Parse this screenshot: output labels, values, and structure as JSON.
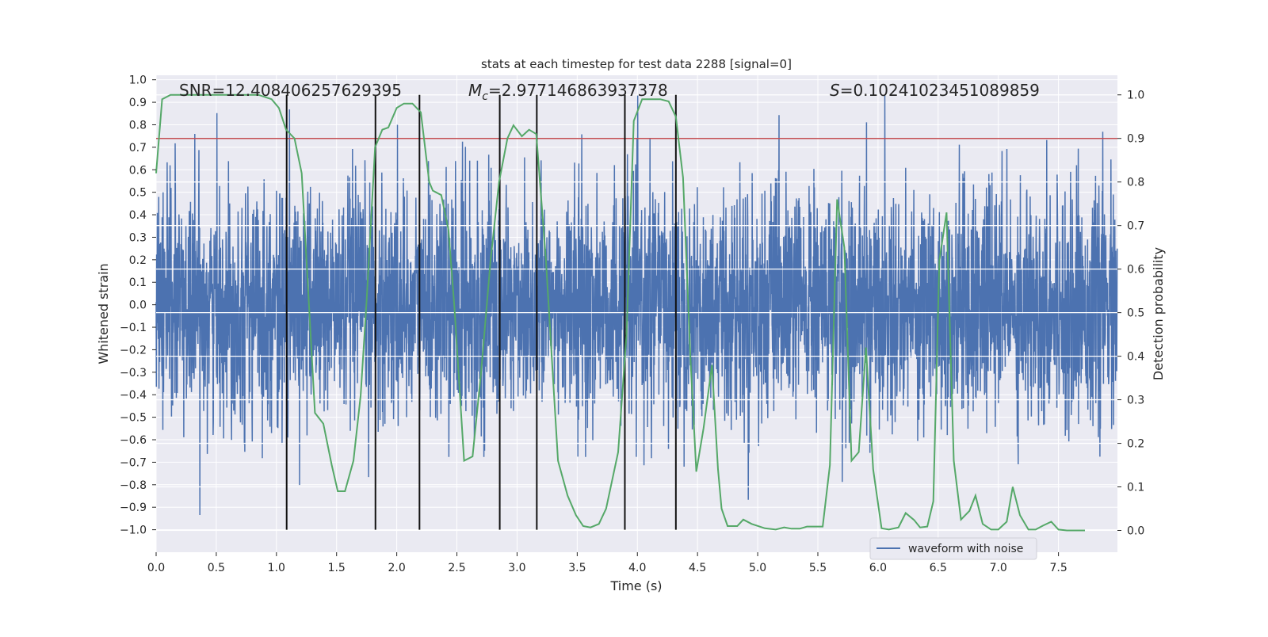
{
  "chart_data": {
    "type": "line",
    "title": "stats at each timestep for test data 2288 [signal=0]",
    "xlabel": "Time (s)",
    "ylabel": "Whitened strain",
    "ylabel_right": "Detection probability",
    "xlim": [
      0,
      7.99
    ],
    "ylim": [
      -1.1,
      1.02
    ],
    "ylim_right": [
      -0.05,
      1.045
    ],
    "x_ticks": [
      0.0,
      0.5,
      1.0,
      1.5,
      2.0,
      2.5,
      3.0,
      3.5,
      4.0,
      4.5,
      5.0,
      5.5,
      6.0,
      6.5,
      7.0,
      7.5
    ],
    "x_tick_labels": [
      "0.0",
      "0.5",
      "1.0",
      "1.5",
      "2.0",
      "2.5",
      "3.0",
      "3.5",
      "4.0",
      "4.5",
      "5.0",
      "5.5",
      "6.0",
      "6.5",
      "7.0",
      "7.5"
    ],
    "y_ticks": [
      1.0,
      0.9,
      0.8,
      0.7,
      0.6,
      0.5,
      0.4,
      0.3,
      0.2,
      0.1,
      0.0,
      -0.1,
      -0.2,
      -0.3,
      -0.4,
      -0.5,
      -0.6,
      -0.7,
      -0.8,
      -0.9,
      -1.0
    ],
    "y_tick_labels": [
      "1.0",
      "0.9",
      "0.8",
      "0.7",
      "0.6",
      "0.5",
      "0.4",
      "0.3",
      "0.2",
      "0.1",
      "0.0",
      "−0.1",
      "−0.2",
      "−0.3",
      "−0.4",
      "−0.5",
      "−0.6",
      "−0.7",
      "−0.8",
      "−0.9",
      "−1.0"
    ],
    "y_right_ticks": [
      1.0,
      0.9,
      0.8,
      0.7,
      0.6,
      0.5,
      0.4,
      0.3,
      0.2,
      0.1,
      0.0
    ],
    "y_right_tick_labels": [
      "1.0",
      "0.9",
      "0.8",
      "0.7",
      "0.6",
      "0.5",
      "0.4",
      "0.3",
      "0.2",
      "0.1",
      "0.0"
    ],
    "grid": true,
    "legend": {
      "placement": "lower-right",
      "entries": [
        "waveform with noise"
      ]
    },
    "annotations": {
      "snr": "SNR=12.408406257629395",
      "mc_symbol": "M",
      "mc_sub": "c",
      "mc_value": "=2.977146863937378",
      "s_symbol": "S",
      "s_value": "=0.10241023451089859"
    },
    "threshold": 0.9,
    "vertical_lines": [
      1.085,
      1.823,
      2.189,
      2.856,
      3.164,
      3.896,
      4.32
    ],
    "waveform": {
      "name": "waveform with noise",
      "typical_amplitude": 0.3,
      "peak_amplitude": 1.0,
      "duration": 7.99
    },
    "detection_probability": {
      "t": [
        0.0,
        0.05,
        0.12,
        0.85,
        0.96,
        1.02,
        1.08,
        1.15,
        1.21,
        1.32,
        1.39,
        1.46,
        1.51,
        1.57,
        1.64,
        1.7,
        1.75,
        1.82,
        1.88,
        1.93,
        2.0,
        2.06,
        2.13,
        2.2,
        2.27,
        2.3,
        2.37,
        2.43,
        2.48,
        2.56,
        2.63,
        2.7,
        2.78,
        2.85,
        2.92,
        2.97,
        3.04,
        3.1,
        3.16,
        3.24,
        3.34,
        3.42,
        3.49,
        3.55,
        3.61,
        3.68,
        3.74,
        3.84,
        3.91,
        3.97,
        4.04,
        4.13,
        4.19,
        4.26,
        4.32,
        4.38,
        4.44,
        4.49,
        4.55,
        4.62,
        4.67,
        4.7,
        4.75,
        4.83,
        4.88,
        4.95,
        5.06,
        5.15,
        5.22,
        5.28,
        5.35,
        5.41,
        5.47,
        5.54,
        5.6,
        5.66,
        5.72,
        5.78,
        5.84,
        5.9,
        5.96,
        6.03,
        6.09,
        6.17,
        6.23,
        6.3,
        6.35,
        6.41,
        6.46,
        6.51,
        6.57,
        6.63,
        6.69,
        6.76,
        6.81,
        6.87,
        6.94,
        7.0,
        7.07,
        7.12,
        7.18,
        7.25,
        7.31,
        7.37,
        7.44,
        7.5,
        7.57,
        7.72
      ],
      "p": [
        0.82,
        0.99,
        1.0,
        1.0,
        0.99,
        0.97,
        0.92,
        0.9,
        0.82,
        0.27,
        0.245,
        0.15,
        0.09,
        0.09,
        0.16,
        0.31,
        0.53,
        0.88,
        0.92,
        0.925,
        0.97,
        0.98,
        0.98,
        0.96,
        0.8,
        0.78,
        0.77,
        0.69,
        0.51,
        0.16,
        0.17,
        0.36,
        0.62,
        0.8,
        0.9,
        0.93,
        0.905,
        0.92,
        0.91,
        0.62,
        0.16,
        0.08,
        0.035,
        0.01,
        0.007,
        0.015,
        0.05,
        0.18,
        0.45,
        0.94,
        0.99,
        0.99,
        0.99,
        0.985,
        0.95,
        0.81,
        0.4,
        0.135,
        0.235,
        0.38,
        0.14,
        0.05,
        0.01,
        0.01,
        0.025,
        0.015,
        0.005,
        0.002,
        0.007,
        0.004,
        0.004,
        0.009,
        0.009,
        0.009,
        0.15,
        0.76,
        0.65,
        0.16,
        0.18,
        0.42,
        0.14,
        0.005,
        0.002,
        0.007,
        0.04,
        0.024,
        0.007,
        0.009,
        0.067,
        0.62,
        0.73,
        0.16,
        0.025,
        0.045,
        0.08,
        0.015,
        0.002,
        0.002,
        0.02,
        0.1,
        0.035,
        0.002,
        0.002,
        0.011,
        0.02,
        0.002,
        0.0,
        0.0
      ]
    }
  }
}
